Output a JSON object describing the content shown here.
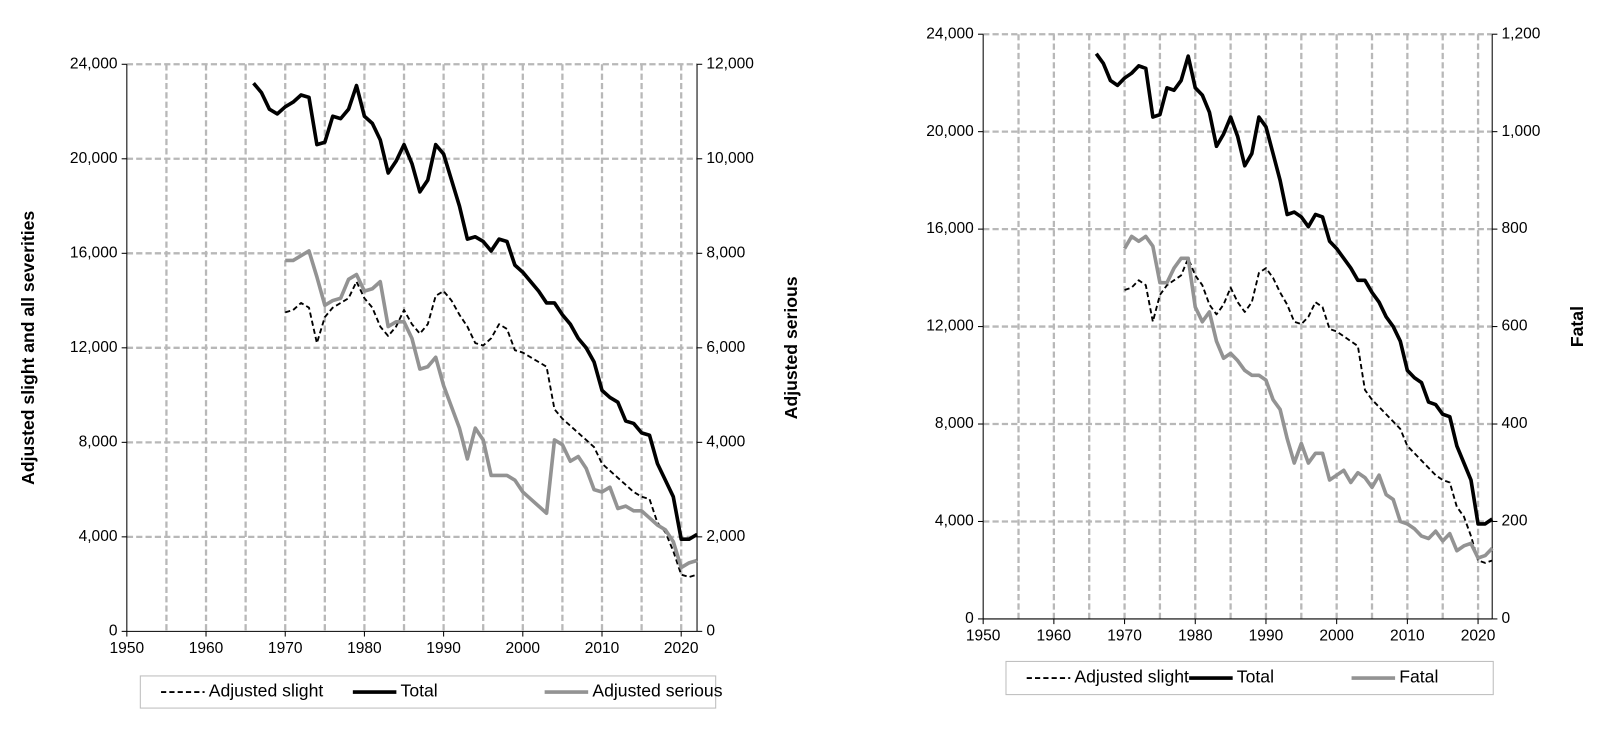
{
  "chart_data": [
    {
      "type": "line",
      "ylabel": "Adjusted slight and all severities",
      "y2label": "Adjusted serious",
      "x": [
        1966,
        1967,
        1968,
        1969,
        1970,
        1971,
        1972,
        1973,
        1974,
        1975,
        1976,
        1977,
        1978,
        1979,
        1980,
        1981,
        1982,
        1983,
        1984,
        1985,
        1986,
        1987,
        1988,
        1989,
        1990,
        1991,
        1992,
        1993,
        1994,
        1995,
        1996,
        1997,
        1998,
        1999,
        2000,
        2001,
        2002,
        2003,
        2004,
        2005,
        2006,
        2007,
        2008,
        2009,
        2010,
        2011,
        2012,
        2013,
        2014,
        2015,
        2016,
        2017,
        2018,
        2019,
        2020,
        2021,
        2022
      ],
      "xlim": [
        1950,
        2022
      ],
      "xticks": [
        1950,
        1960,
        1970,
        1980,
        1990,
        2000,
        2010,
        2020
      ],
      "ylim": [
        0,
        24000
      ],
      "yticks": [
        0,
        {
          "value": 4000,
          "label": "4,000"
        },
        {
          "value": 8000,
          "label": "8,000"
        },
        {
          "value": 12000,
          "label": "12,000"
        },
        {
          "value": 16000,
          "label": "16,000"
        },
        {
          "value": 20000,
          "label": "20,000"
        },
        {
          "value": 24000,
          "label": "24,000"
        }
      ],
      "y2lim": [
        0,
        12000
      ],
      "y2ticks": [
        0,
        {
          "value": 2000,
          "label": "2,000"
        },
        {
          "value": 4000,
          "label": "4,000"
        },
        {
          "value": 6000,
          "label": "6,000"
        },
        {
          "value": 8000,
          "label": "8,000"
        },
        {
          "value": 10000,
          "label": "10,000"
        },
        {
          "value": 12000,
          "label": "12,000"
        }
      ],
      "grid": true,
      "series": [
        {
          "name": "Adjusted slight",
          "color": "#000000",
          "dash": true,
          "values": [
            null,
            null,
            null,
            null,
            13500,
            13600,
            13900,
            13700,
            12200,
            13300,
            13700,
            13900,
            14100,
            14800,
            14100,
            13700,
            12900,
            12500,
            12900,
            13600,
            13000,
            12600,
            13000,
            14200,
            14400,
            14000,
            13400,
            12900,
            12200,
            12100,
            12400,
            13000,
            12800,
            11900,
            11800,
            11600,
            11400,
            11200,
            9400,
            9000,
            8700,
            8400,
            8100,
            7800,
            7100,
            6800,
            6500,
            6200,
            5900,
            5700,
            5600,
            4600,
            4200,
            3400,
            2400,
            2300,
            2400
          ]
        },
        {
          "name": "Total",
          "color": "#000000",
          "dash": false,
          "values": [
            23200,
            22800,
            22100,
            21900,
            22200,
            22400,
            22700,
            22600,
            20600,
            20700,
            21800,
            21700,
            22100,
            23100,
            21800,
            21500,
            20800,
            19400,
            19900,
            20600,
            19800,
            18600,
            19100,
            20600,
            20200,
            19100,
            18000,
            16600,
            16700,
            16500,
            16100,
            16600,
            16500,
            15500,
            15200,
            14800,
            14400,
            13900,
            13900,
            13400,
            13000,
            12400,
            12000,
            11400,
            10200,
            9900,
            9700,
            8900,
            8800,
            8400,
            8300,
            7100,
            6400,
            5700,
            3900,
            3900,
            4100
          ]
        },
        {
          "name": "Adjusted serious",
          "color": "#939393",
          "dash": false,
          "axis": "y2",
          "values": [
            null,
            null,
            null,
            null,
            7850,
            7850,
            7950,
            8050,
            7500,
            6900,
            7000,
            7050,
            7450,
            7550,
            7200,
            7250,
            7400,
            6450,
            6550,
            6550,
            6200,
            5550,
            5600,
            5800,
            5200,
            4750,
            4300,
            3650,
            4300,
            4050,
            3300,
            3300,
            3300,
            3200,
            2950,
            2800,
            2650,
            2500,
            4050,
            3950,
            3600,
            3700,
            3450,
            3000,
            2950,
            3050,
            2600,
            2650,
            2550,
            2550,
            2400,
            2250,
            2150,
            1900,
            1350,
            1450,
            1500
          ]
        }
      ]
    },
    {
      "type": "line",
      "y2label": "Fatal",
      "x": [
        1966,
        1967,
        1968,
        1969,
        1970,
        1971,
        1972,
        1973,
        1974,
        1975,
        1976,
        1977,
        1978,
        1979,
        1980,
        1981,
        1982,
        1983,
        1984,
        1985,
        1986,
        1987,
        1988,
        1989,
        1990,
        1991,
        1992,
        1993,
        1994,
        1995,
        1996,
        1997,
        1998,
        1999,
        2000,
        2001,
        2002,
        2003,
        2004,
        2005,
        2006,
        2007,
        2008,
        2009,
        2010,
        2011,
        2012,
        2013,
        2014,
        2015,
        2016,
        2017,
        2018,
        2019,
        2020,
        2021,
        2022
      ],
      "xlim": [
        1950,
        2022
      ],
      "xticks": [
        1950,
        1960,
        1970,
        1980,
        1990,
        2000,
        2010,
        2020
      ],
      "ylim": [
        0,
        24000
      ],
      "yticks": [
        0,
        {
          "value": 4000,
          "label": "4,000"
        },
        {
          "value": 8000,
          "label": "8,000"
        },
        {
          "value": 12000,
          "label": "12,000"
        },
        {
          "value": 16000,
          "label": "16,000"
        },
        {
          "value": 20000,
          "label": "20,000"
        },
        {
          "value": 24000,
          "label": "24,000"
        }
      ],
      "y2lim": [
        0,
        1200
      ],
      "y2ticks": [
        0,
        200,
        400,
        600,
        800,
        {
          "value": 1000,
          "label": "1,000"
        },
        {
          "value": 1200,
          "label": "1,200"
        }
      ],
      "grid": true,
      "series": [
        {
          "name": "Adjusted slight",
          "color": "#000000",
          "dash": true,
          "values": [
            null,
            null,
            null,
            null,
            13500,
            13600,
            13900,
            13700,
            12200,
            13300,
            13700,
            13900,
            14100,
            14800,
            14100,
            13700,
            12900,
            12500,
            12900,
            13600,
            13000,
            12600,
            13000,
            14200,
            14400,
            14000,
            13400,
            12900,
            12200,
            12100,
            12400,
            13000,
            12800,
            11900,
            11800,
            11600,
            11400,
            11200,
            9400,
            9000,
            8700,
            8400,
            8100,
            7800,
            7100,
            6800,
            6500,
            6200,
            5900,
            5700,
            5600,
            4600,
            4200,
            3400,
            2400,
            2300,
            2400
          ]
        },
        {
          "name": "Total",
          "color": "#000000",
          "dash": false,
          "values": [
            23200,
            22800,
            22100,
            21900,
            22200,
            22400,
            22700,
            22600,
            20600,
            20700,
            21800,
            21700,
            22100,
            23100,
            21800,
            21500,
            20800,
            19400,
            19900,
            20600,
            19800,
            18600,
            19100,
            20600,
            20200,
            19100,
            18000,
            16600,
            16700,
            16500,
            16100,
            16600,
            16500,
            15500,
            15200,
            14800,
            14400,
            13900,
            13900,
            13400,
            13000,
            12400,
            12000,
            11400,
            10200,
            9900,
            9700,
            8900,
            8800,
            8400,
            8300,
            7100,
            6400,
            5700,
            3900,
            3900,
            4100
          ]
        },
        {
          "name": "Fatal",
          "color": "#939393",
          "dash": false,
          "axis": "y2",
          "values": [
            null,
            null,
            null,
            null,
            760,
            785,
            775,
            785,
            765,
            690,
            690,
            720,
            740,
            740,
            640,
            610,
            630,
            570,
            535,
            545,
            530,
            510,
            500,
            500,
            490,
            450,
            430,
            370,
            320,
            360,
            320,
            340,
            340,
            285,
            295,
            305,
            280,
            300,
            290,
            270,
            295,
            255,
            245,
            200,
            195,
            185,
            170,
            165,
            180,
            160,
            175,
            140,
            150,
            155,
            125,
            130,
            145
          ]
        }
      ]
    }
  ]
}
